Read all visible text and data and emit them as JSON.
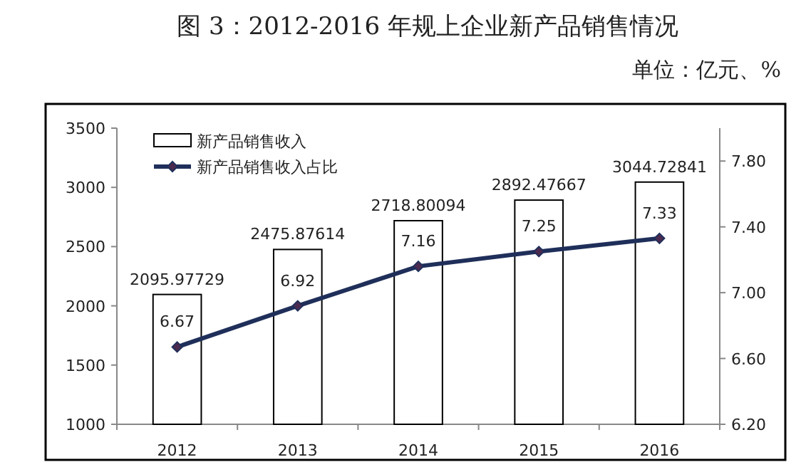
{
  "chart_data": {
    "type": "bar",
    "title": "图 3：2012-2016 年规上企业新产品销售情况",
    "subtitle": "单位：亿元、%",
    "categories": [
      "2012",
      "2013",
      "2014",
      "2015",
      "2016"
    ],
    "series": [
      {
        "name": "新产品销售收入",
        "color": "#ffffff",
        "values": [
          2095.97729,
          2475.87614,
          2718.80094,
          2892.47667,
          3044.72841
        ]
      },
      {
        "name": "新产品销售收入占比",
        "type": "line",
        "axis": "y2",
        "color": "#1f2f5a",
        "values": [
          6.67,
          6.92,
          7.16,
          7.25,
          7.33
        ]
      }
    ],
    "ylim": [
      1000,
      3500
    ],
    "yticks": [
      1000,
      1500,
      2000,
      2500,
      3000,
      3500
    ],
    "y2lim": [
      6.2,
      8.0
    ],
    "y2ticks": [
      {
        "value": 6.2,
        "label": "6.20"
      },
      {
        "value": 6.6,
        "label": "6.60"
      },
      {
        "value": 7.0,
        "label": "7.00"
      },
      {
        "value": 7.4,
        "label": "7.40"
      },
      {
        "value": 7.8,
        "label": "7.80"
      }
    ],
    "data_labels": true,
    "legend": "top left",
    "marker": "diamond"
  }
}
